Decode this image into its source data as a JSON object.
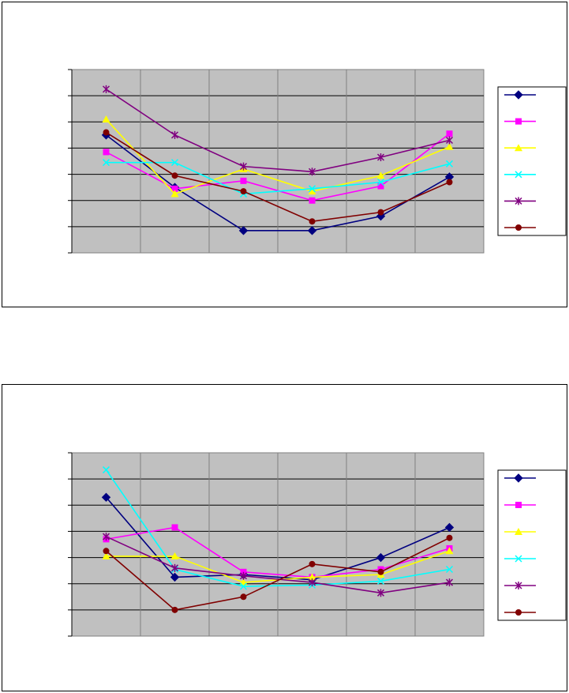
{
  "chart_data": [
    {
      "type": "line",
      "categories": [
        "",
        "",
        "",
        "",
        "",
        ""
      ],
      "ylim": [
        0,
        7
      ],
      "grid": true,
      "legend": "right",
      "series": [
        {
          "color": "#000080",
          "marker": "diamond",
          "values": [
            4.5,
            2.5,
            0.85,
            0.85,
            1.4,
            2.9
          ]
        },
        {
          "color": "#ff00ff",
          "marker": "square",
          "values": [
            3.85,
            2.45,
            2.75,
            2.0,
            2.55,
            4.55
          ]
        },
        {
          "color": "#ffff00",
          "marker": "triangle",
          "values": [
            5.1,
            2.25,
            3.2,
            2.35,
            2.95,
            4.05
          ]
        },
        {
          "color": "#00ffff",
          "marker": "x",
          "values": [
            3.45,
            3.45,
            2.25,
            2.45,
            2.7,
            3.4
          ]
        },
        {
          "color": "#800080",
          "marker": "star",
          "values": [
            6.25,
            4.5,
            3.3,
            3.1,
            3.65,
            4.3
          ]
        },
        {
          "color": "#800000",
          "marker": "circle",
          "values": [
            4.6,
            2.95,
            2.35,
            1.2,
            1.55,
            2.7
          ]
        }
      ]
    },
    {
      "type": "line",
      "categories": [
        "",
        "",
        "",
        "",
        "",
        ""
      ],
      "ylim": [
        0,
        7
      ],
      "grid": true,
      "legend": "right",
      "series": [
        {
          "color": "#000080",
          "marker": "diamond",
          "values": [
            5.3,
            2.25,
            2.35,
            2.15,
            3.0,
            4.15
          ]
        },
        {
          "color": "#ff00ff",
          "marker": "square",
          "values": [
            3.7,
            4.15,
            2.45,
            2.25,
            2.55,
            3.35
          ]
        },
        {
          "color": "#ffff00",
          "marker": "triangle",
          "values": [
            3.05,
            3.05,
            2.05,
            2.25,
            2.35,
            3.25
          ]
        },
        {
          "color": "#00ffff",
          "marker": "x",
          "values": [
            6.35,
            2.55,
            1.9,
            1.95,
            2.1,
            2.55
          ]
        },
        {
          "color": "#800080",
          "marker": "star",
          "values": [
            3.8,
            2.6,
            2.3,
            2.05,
            1.65,
            2.05
          ]
        },
        {
          "color": "#800000",
          "marker": "circle",
          "values": [
            3.25,
            1.0,
            1.5,
            2.75,
            2.45,
            3.75
          ]
        }
      ]
    }
  ]
}
